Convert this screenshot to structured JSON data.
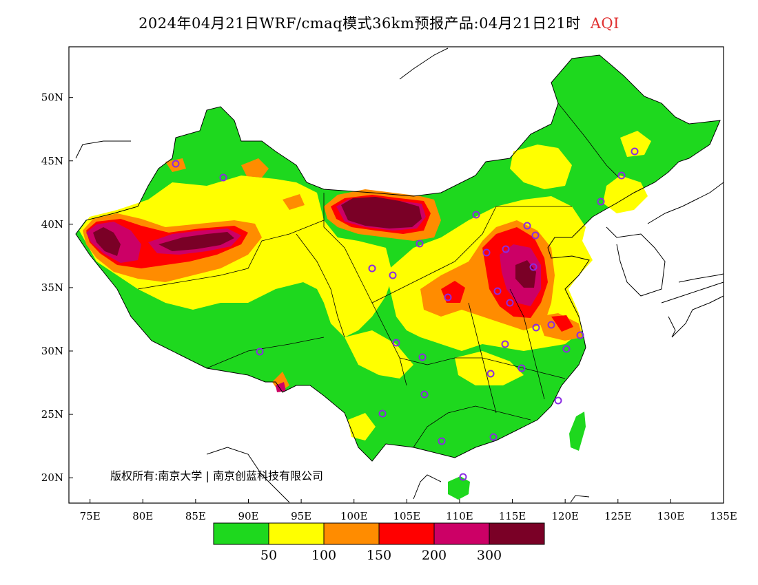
{
  "title": {
    "main": "2024年04月21日WRF/cmaq模式36km预报产品:04月21日21时",
    "variable": "AQI",
    "variable_color": "#e03030"
  },
  "map": {
    "lon_range": [
      73,
      135
    ],
    "lat_range": [
      18,
      54
    ],
    "x_ticks": [
      "75E",
      "80E",
      "85E",
      "90E",
      "95E",
      "100E",
      "105E",
      "110E",
      "115E",
      "120E",
      "125E",
      "130E",
      "135E"
    ],
    "y_ticks": [
      "50N",
      "45N",
      "40N",
      "35N",
      "30N",
      "25N",
      "20N"
    ],
    "copyright": "版权所有:南京大学 | 南京创蓝科技有限公司",
    "station_marker_color": "#8a2be2"
  },
  "legend": {
    "colors": [
      "#1ed81e",
      "#ffff00",
      "#ff8c00",
      "#ff0000",
      "#cc0066",
      "#7a0026"
    ],
    "labels": [
      "50",
      "100",
      "150",
      "200",
      "300"
    ]
  }
}
